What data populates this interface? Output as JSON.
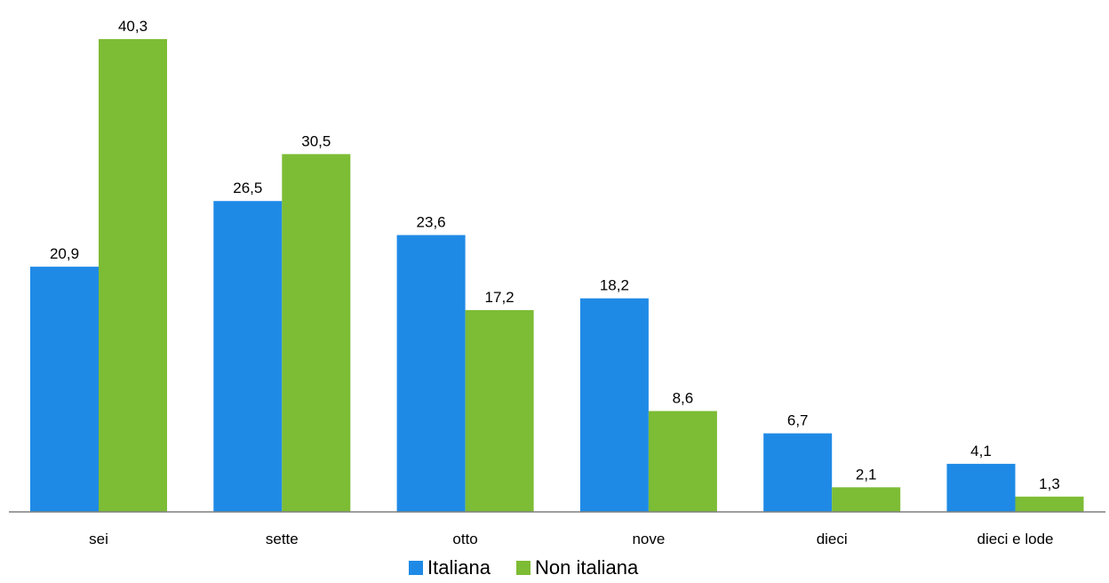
{
  "chart_data": {
    "type": "bar",
    "title": "",
    "xlabel": "",
    "ylabel": "",
    "ylim": [
      0,
      44
    ],
    "grid": false,
    "legend_position": "bottom",
    "categories": [
      "sei",
      "sette",
      "otto",
      "nove",
      "dieci",
      "dieci e lode"
    ],
    "series": [
      {
        "name": "Italiana",
        "color": "#1f8ae6",
        "values": [
          20.9,
          26.5,
          23.6,
          18.2,
          6.7,
          4.1
        ],
        "labels": [
          "20,9",
          "26,5",
          "23,6",
          "18,2",
          "6,7",
          "4,1"
        ]
      },
      {
        "name": "Non italiana",
        "color": "#7dbc35",
        "values": [
          40.3,
          30.5,
          17.2,
          8.6,
          2.1,
          1.3
        ],
        "labels": [
          "40,3",
          "30,5",
          "17,2",
          "8,6",
          "2,1",
          "1,3"
        ]
      }
    ]
  }
}
